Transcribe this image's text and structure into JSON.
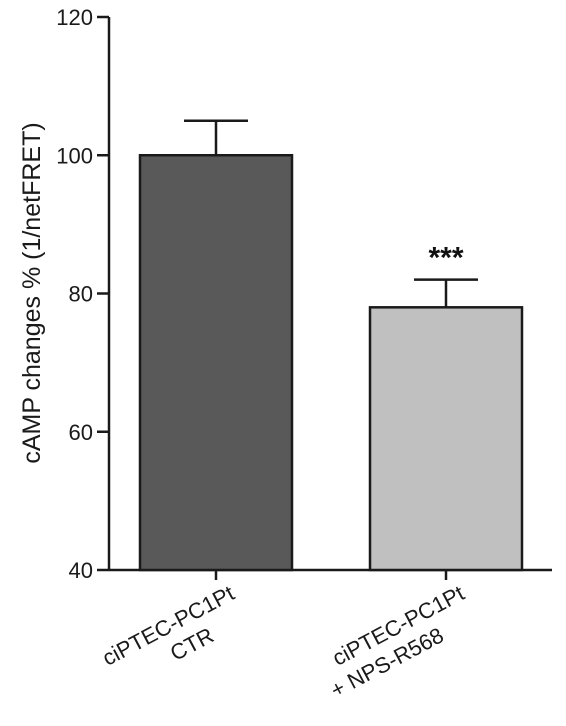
{
  "chart_data": {
    "type": "bar",
    "title": "",
    "xlabel": "",
    "ylabel": "cAMP changes % (1/netFRET)",
    "ylim": [
      40,
      120
    ],
    "yticks": [
      40,
      60,
      80,
      100,
      120
    ],
    "grid": false,
    "categories": [
      {
        "lines": [
          "ciPTEC-PC1Pt",
          "CTR"
        ]
      },
      {
        "lines": [
          "ciPTEC-PC1Pt",
          "+ NPS-R568"
        ]
      }
    ],
    "values": [
      100,
      78
    ],
    "errors": [
      5,
      4
    ],
    "annotations": [
      "",
      "***"
    ],
    "colors": {
      "bars": [
        "#595959",
        "#c0c0c0"
      ],
      "axis": "#1a1a1a"
    }
  }
}
